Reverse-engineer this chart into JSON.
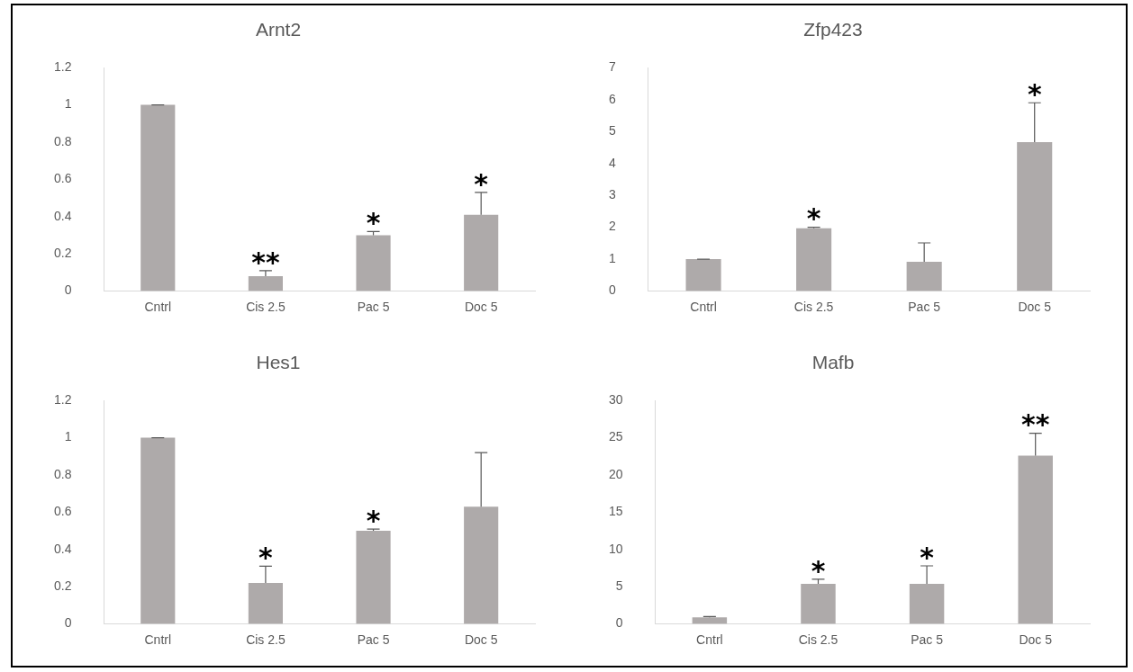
{
  "chart_data": [
    {
      "type": "bar",
      "title": "Arnt2",
      "categories": [
        "Cntrl",
        "Cis 2.5",
        "Pac 5",
        "Doc 5"
      ],
      "values": [
        1.0,
        0.08,
        0.3,
        0.41
      ],
      "color": "#aeaaaa",
      "errors": [
        [
          1.0,
          1.0
        ],
        [
          0.08,
          0.11
        ],
        [
          0.3,
          0.32
        ],
        [
          0.41,
          0.53
        ]
      ],
      "ylim": [
        0,
        1.2
      ],
      "yticks": [
        0,
        0.2,
        0.4,
        0.6,
        0.8,
        1,
        1.2
      ],
      "grid": false,
      "legend": false,
      "value_labels": [
        null,
        "**",
        "*",
        "*"
      ]
    },
    {
      "type": "bar",
      "title": "Zfp423",
      "categories": [
        "Cntrl",
        "Cis 2.5",
        "Pac 5",
        "Doc 5"
      ],
      "values": [
        1.0,
        1.97,
        0.92,
        4.67
      ],
      "color": "#aeaaaa",
      "errors": [
        [
          1.0,
          1.0
        ],
        [
          1.97,
          2.0
        ],
        [
          0.92,
          1.51
        ],
        [
          4.67,
          5.9
        ]
      ],
      "ylim": [
        0,
        7
      ],
      "yticks": [
        0,
        1,
        2,
        3,
        4,
        5,
        6,
        7
      ],
      "grid": false,
      "legend": false,
      "value_labels": [
        null,
        "*",
        null,
        "*"
      ]
    },
    {
      "type": "bar",
      "title": "Hes1",
      "categories": [
        "Cntrl",
        "Cis 2.5",
        "Pac 5",
        "Doc 5"
      ],
      "values": [
        1.0,
        0.22,
        0.5,
        0.63
      ],
      "color": "#aeaaaa",
      "errors": [
        [
          1.0,
          1.0
        ],
        [
          0.22,
          0.31
        ],
        [
          0.5,
          0.51
        ],
        [
          0.63,
          0.92
        ]
      ],
      "ylim": [
        0,
        1.2
      ],
      "yticks": [
        0,
        0.2,
        0.4,
        0.6,
        0.8,
        1,
        1.2
      ],
      "grid": false,
      "legend": false,
      "value_labels": [
        null,
        "*",
        "*",
        null
      ]
    },
    {
      "type": "bar",
      "title": "Mafb",
      "categories": [
        "Cntrl",
        "Cis 2.5",
        "Pac 5",
        "Doc 5"
      ],
      "values": [
        0.9,
        5.4,
        5.4,
        22.6
      ],
      "color": "#aeaaaa",
      "errors": [
        [
          0.9,
          1.0
        ],
        [
          5.4,
          6.0
        ],
        [
          5.4,
          7.8
        ],
        [
          22.6,
          25.6
        ]
      ],
      "ylim": [
        0,
        30
      ],
      "yticks": [
        0,
        5,
        10,
        15,
        20,
        25,
        30
      ],
      "grid": false,
      "legend": false,
      "value_labels": [
        null,
        "*",
        "*",
        "**"
      ]
    }
  ]
}
